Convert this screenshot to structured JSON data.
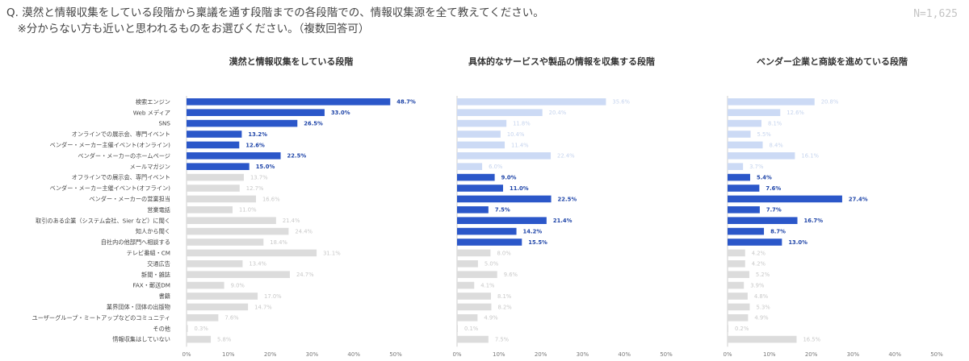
{
  "header": {
    "question_line1": "Q. 漠然と情報収集をしている段階から稟議を通す段階までの各段階での、情報収集源を全て教えてください。",
    "question_line2": "　※分からない方も近いと思われるものをお選びください。（複数回答可）",
    "sample_size": "N=1,625"
  },
  "colors": {
    "highlight": "#2b57c9",
    "light_blue": "#ccdaf5",
    "gray": "#dcdcdc",
    "highlight_label": "#1f45a8",
    "light_label": "#c6d4ee",
    "gray_label": "#c9c9c9"
  },
  "chart_data": {
    "type": "bar",
    "orientation": "horizontal",
    "categories": [
      "検索エンジン",
      "Web メディア",
      "SNS",
      "オンラインでの展示会、専門イベント",
      "ベンダー・メーカー主催イベント(オンライン)",
      "ベンダー・メーカーのホームページ",
      "メールマガジン",
      "オフラインでの展示会、専門イベント",
      "ベンダー・メーカー主催イベント(オフライン)",
      "ベンダー・メーカーの営業担当",
      "営業電話",
      "取引のある企業（システム会社、Sier など）に聞く",
      "知人から聞く",
      "自社内の他部門へ相談する",
      "テレビ番組・CM",
      "交通広告",
      "新聞・雑誌",
      "FAX・郵送DM",
      "書籍",
      "業界団体・団体の出版物",
      "ユーザーグループ・ミートアップなどのコミュニティ",
      "その他",
      "情報収集はしていない"
    ],
    "x_ticks": [
      "0%",
      "10%",
      "20%",
      "30%",
      "40%",
      "50%"
    ],
    "xlim": [
      0,
      50
    ],
    "panels": [
      {
        "title": "漠然と情報収集をしている段階",
        "values": [
          48.7,
          33.0,
          26.5,
          13.2,
          12.6,
          22.5,
          15.0,
          13.7,
          12.7,
          16.6,
          11.0,
          21.4,
          24.4,
          18.4,
          31.1,
          13.4,
          24.7,
          9.0,
          17.0,
          14.7,
          7.6,
          0.3,
          5.8
        ],
        "labels": [
          "48.7%",
          "33.0%",
          "26.5%",
          "13.2%",
          "12.6%",
          "22.5%",
          "15.0%",
          "13.7%",
          "12.7%",
          "16.6%",
          "11.0%",
          "21.4%",
          "24.4%",
          "18.4%",
          "31.1%",
          "13.4%",
          "24.7%",
          "9.0%",
          "17.0%",
          "14.7%",
          "7.6%",
          "0.3%",
          "5.8%"
        ],
        "highlighted": [
          0,
          1,
          2,
          3,
          4,
          5,
          6
        ],
        "base_color": "gray"
      },
      {
        "title": "具体的なサービスや製品の情報を収集する段階",
        "values": [
          35.6,
          20.4,
          11.8,
          10.4,
          11.4,
          22.4,
          6.0,
          9.0,
          11.0,
          22.5,
          7.5,
          21.4,
          14.2,
          15.5,
          8.0,
          5.0,
          9.6,
          4.1,
          8.1,
          8.2,
          4.9,
          0.1,
          7.5
        ],
        "labels": [
          "35.6%",
          "20.4%",
          "11.8%",
          "10.4%",
          "11.4%",
          "22.4%",
          "6.0%",
          "9.0%",
          "11.0%",
          "22.5%",
          "7.5%",
          "21.4%",
          "14.2%",
          "15.5%",
          "8.0%",
          "5.0%",
          "9.6%",
          "4.1%",
          "8.1%",
          "8.2%",
          "4.9%",
          "0.1%",
          "7.5%"
        ],
        "highlighted": [
          7,
          8,
          9,
          10,
          11,
          12,
          13
        ],
        "base_color": "light_blue",
        "tail_color": "gray",
        "tail_from": 14
      },
      {
        "title": "ベンダー企業と商談を進めている段階",
        "values": [
          20.8,
          12.6,
          8.1,
          5.5,
          8.4,
          16.1,
          3.7,
          5.4,
          7.6,
          27.4,
          7.7,
          16.7,
          8.7,
          13.0,
          4.2,
          4.2,
          5.2,
          3.9,
          4.8,
          5.3,
          4.9,
          0.2,
          16.5
        ],
        "labels": [
          "20.8%",
          "12.6%",
          "8.1%",
          "5.5%",
          "8.4%",
          "16.1%",
          "3.7%",
          "5.4%",
          "7.6%",
          "27.4%",
          "7.7%",
          "16.7%",
          "8.7%",
          "13.0%",
          "4.2%",
          "4.2%",
          "5.2%",
          "3.9%",
          "4.8%",
          "5.3%",
          "4.9%",
          "0.2%",
          "16.5%"
        ],
        "highlighted": [
          7,
          8,
          9,
          10,
          11,
          12,
          13
        ],
        "base_color": "light_blue",
        "tail_color": "gray",
        "tail_from": 14
      }
    ]
  }
}
